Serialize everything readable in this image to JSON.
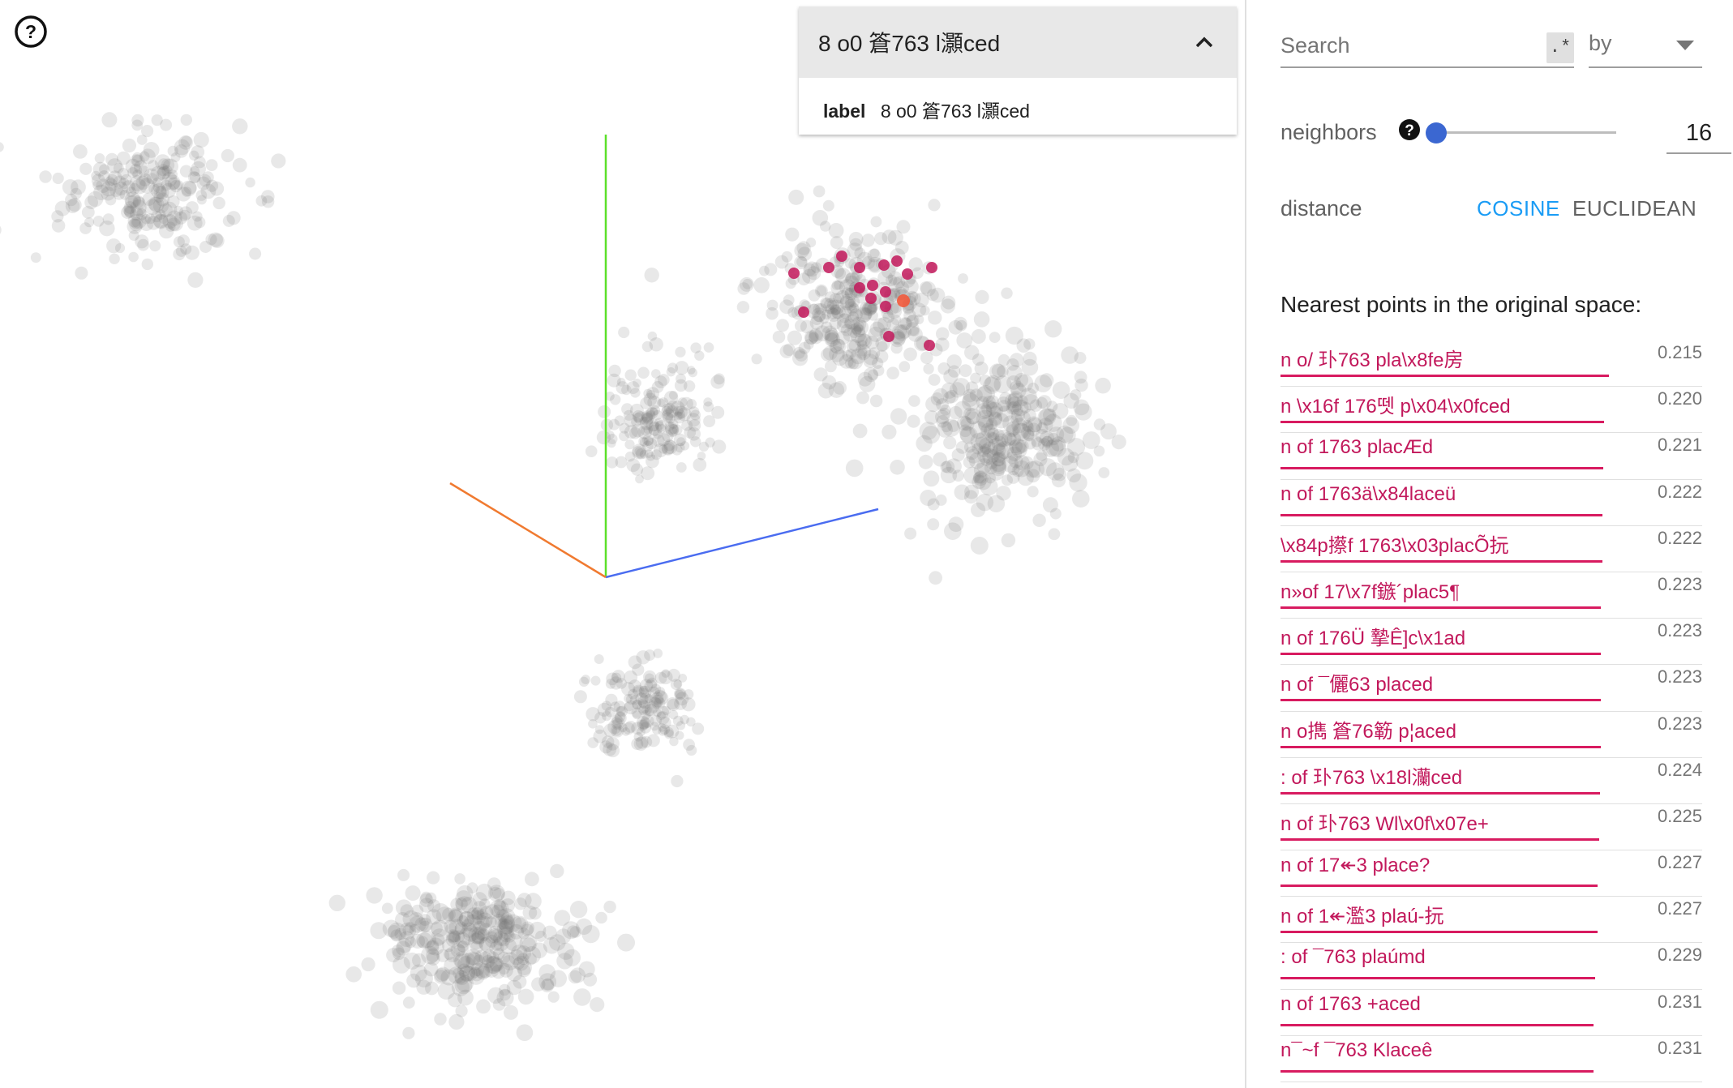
{
  "help_icon": "help-circle-icon",
  "label_card": {
    "title": "8 o0 篬763 l灝ced",
    "collapse_icon": "chevron-up-icon",
    "field_key": "label",
    "field_value": "8 o0 篬763 l灝ced"
  },
  "axes_colors": {
    "x": "#4a6cf0",
    "y": "#5ce02a",
    "z": "#f07a30"
  },
  "point_colors": {
    "default": "#707070",
    "neighbor": "#c2185b",
    "selected": "#f25a3c"
  },
  "panel": {
    "search": {
      "placeholder": "Search",
      "regex_label": ".*",
      "by_label": "by",
      "by_icon": "caret-down-icon"
    },
    "neighbors": {
      "label": "neighbors",
      "help_icon": "help-icon",
      "value": "16",
      "slider_fraction": 0
    },
    "distance": {
      "label": "distance",
      "cosine": "COSINE",
      "euclidean": "EUCLIDEAN",
      "selected": "COSINE"
    },
    "nearest_title": "Nearest points in the original space:",
    "nearest": [
      {
        "label": "n o/ 㺪763 pla\\x8fe房",
        "value": "0.215"
      },
      {
        "label": "n \\x16f 176뗏 p\\x04\\x0fced",
        "value": "0.220"
      },
      {
        "label": "n of 1763 placÆd",
        "value": "0.221"
      },
      {
        "label": "n of 1763ä\\x84laceü",
        "value": "0.222"
      },
      {
        "label": "\\x84p攃f 1763\\x03placÕ抏",
        "value": "0.222"
      },
      {
        "label": "n»of 17\\x7f鏃´plac5¶",
        "value": "0.223"
      },
      {
        "label": "n of 176Ü 摯Ê]c\\x1ad",
        "value": "0.223"
      },
      {
        "label": "n of ¯儷63 placed",
        "value": "0.223"
      },
      {
        "label": "n o擕 篬76簕 p¦aced",
        "value": "0.223"
      },
      {
        "label": ": of 㺪763 \\x18l灡ced",
        "value": "0.224"
      },
      {
        "label": "n of 㺪763 Wl\\x0f\\x07e+",
        "value": "0.225"
      },
      {
        "label": "n of 17↞3 place?",
        "value": "0.227"
      },
      {
        "label": "n of 1↞濫3 plaú-抏",
        "value": "0.227"
      },
      {
        "label": ": of ¯763 plaúmd",
        "value": "0.229"
      },
      {
        "label": "n of 1763 +aced",
        "value": "0.231"
      },
      {
        "label": "n¯~f ¯763 Klaceê",
        "value": "0.231"
      }
    ]
  }
}
